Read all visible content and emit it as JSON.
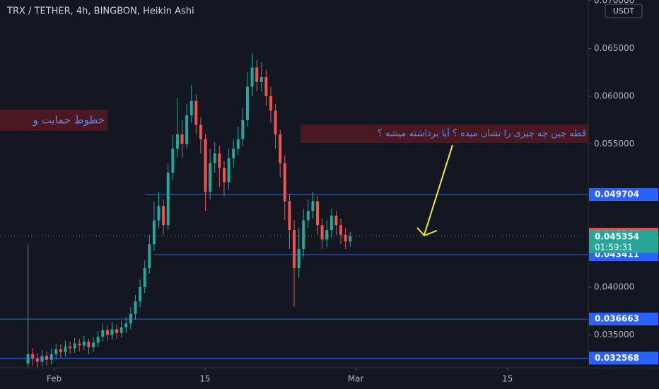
{
  "chart_data": {
    "type": "candlestick",
    "title": "TRX / TETHER, 4h, BINGBON, Heikin Ashi",
    "currency": "USDT",
    "up_color": "#26a69a",
    "down_color": "#ef5350",
    "level_color": "#2962ff",
    "xlim": [
      -6,
      120
    ],
    "xticks": [
      {
        "value": 5.6,
        "label": "Feb"
      },
      {
        "value": 37.9,
        "label": "15"
      },
      {
        "value": 70.2,
        "label": "Mar"
      },
      {
        "value": 102.7,
        "label": "15"
      }
    ],
    "ylim": [
      0.03156,
      0.07008
    ],
    "yticks": [
      {
        "value": 0.035,
        "label": "0.035000"
      },
      {
        "value": 0.04,
        "label": "0.040000"
      },
      {
        "value": 0.055,
        "label": "0.055000"
      },
      {
        "value": 0.06,
        "label": "0.060000"
      },
      {
        "value": 0.065,
        "label": "0.065000"
      },
      {
        "value": 0.07,
        "label": "0.070000"
      }
    ],
    "open": [
      0.032,
      0.033,
      0.0325,
      0.0322,
      0.0328,
      0.0324,
      0.033,
      0.0335,
      0.0332,
      0.0338,
      0.0336,
      0.0341,
      0.0339,
      0.0343,
      0.0337,
      0.0342,
      0.0348,
      0.0355,
      0.035,
      0.0356,
      0.0352,
      0.0358,
      0.0362,
      0.0372,
      0.0385,
      0.04,
      0.042,
      0.0445,
      0.047,
      0.0485,
      0.0465,
      0.052,
      0.0545,
      0.056,
      0.055,
      0.058,
      0.0595,
      0.057,
      0.0555,
      0.05,
      0.053,
      0.054,
      0.0525,
      0.051,
      0.0535,
      0.0545,
      0.0555,
      0.0575,
      0.061,
      0.063,
      0.0615,
      0.062,
      0.06,
      0.0585,
      0.056,
      0.053,
      0.049,
      0.046,
      0.042,
      0.044,
      0.047,
      0.048,
      0.049,
      0.0465,
      0.045,
      0.046,
      0.0475,
      0.0465,
      0.0455,
      0.0448
    ],
    "close": [
      0.033,
      0.0325,
      0.0322,
      0.0328,
      0.0324,
      0.033,
      0.0335,
      0.0332,
      0.0338,
      0.0336,
      0.0341,
      0.0339,
      0.0343,
      0.0337,
      0.0342,
      0.0348,
      0.0355,
      0.035,
      0.0356,
      0.0352,
      0.0358,
      0.0362,
      0.0372,
      0.0385,
      0.04,
      0.042,
      0.0445,
      0.047,
      0.0485,
      0.0465,
      0.052,
      0.0545,
      0.056,
      0.055,
      0.058,
      0.0595,
      0.057,
      0.0555,
      0.05,
      0.053,
      0.054,
      0.0525,
      0.051,
      0.0535,
      0.0545,
      0.0555,
      0.0575,
      0.061,
      0.063,
      0.0615,
      0.062,
      0.06,
      0.0585,
      0.056,
      0.053,
      0.049,
      0.046,
      0.042,
      0.044,
      0.047,
      0.048,
      0.049,
      0.0465,
      0.045,
      0.046,
      0.0475,
      0.0465,
      0.0455,
      0.0448,
      0.04535
    ],
    "high": [
      0.0445,
      0.0336,
      0.0331,
      0.0334,
      0.0333,
      0.0336,
      0.0341,
      0.034,
      0.0344,
      0.0343,
      0.0347,
      0.0346,
      0.0349,
      0.0346,
      0.0348,
      0.0354,
      0.0362,
      0.036,
      0.0363,
      0.0361,
      0.0365,
      0.0369,
      0.0379,
      0.0392,
      0.0408,
      0.0428,
      0.0455,
      0.049,
      0.05,
      0.0492,
      0.053,
      0.056,
      0.0598,
      0.0575,
      0.0592,
      0.0612,
      0.0602,
      0.0578,
      0.056,
      0.0545,
      0.0552,
      0.0548,
      0.0532,
      0.0545,
      0.0555,
      0.0568,
      0.0588,
      0.0625,
      0.0645,
      0.0638,
      0.0636,
      0.0628,
      0.061,
      0.0592,
      0.0565,
      0.0538,
      0.0498,
      0.047,
      0.0462,
      0.0482,
      0.0492,
      0.05,
      0.0496,
      0.0472,
      0.047,
      0.0482,
      0.048,
      0.0472,
      0.0462,
      0.0458
    ],
    "low": [
      0.0316,
      0.0318,
      0.0316,
      0.0317,
      0.0318,
      0.0319,
      0.0324,
      0.0326,
      0.0327,
      0.033,
      0.0331,
      0.0333,
      0.0334,
      0.033,
      0.0332,
      0.0337,
      0.0343,
      0.0344,
      0.0345,
      0.0346,
      0.0347,
      0.0352,
      0.0356,
      0.0366,
      0.0379,
      0.0394,
      0.0414,
      0.0438,
      0.0462,
      0.0455,
      0.046,
      0.0512,
      0.0536,
      0.0535,
      0.0545,
      0.0572,
      0.056,
      0.054,
      0.048,
      0.0492,
      0.052,
      0.0505,
      0.0495,
      0.0502,
      0.0525,
      0.0538,
      0.0548,
      0.0568,
      0.06,
      0.0605,
      0.0605,
      0.059,
      0.0572,
      0.0545,
      0.0515,
      0.047,
      0.044,
      0.038,
      0.041,
      0.0432,
      0.0462,
      0.0472,
      0.0455,
      0.044,
      0.0442,
      0.0452,
      0.0455,
      0.0445,
      0.044,
      0.0442
    ],
    "levels": [
      0.049704,
      0.043411,
      0.036663,
      0.032568
    ],
    "last_price": {
      "value": 0.045544,
      "color": "#ef5350"
    },
    "current_price": {
      "value": 0.045354,
      "countdown": "01:59:31",
      "color": "#26a69a"
    },
    "annotations": [
      "خطوط حمایت و",
      "قطه چین چه چیزی را نشان میده ؟ آیا برداشته میشه ؟"
    ]
  }
}
